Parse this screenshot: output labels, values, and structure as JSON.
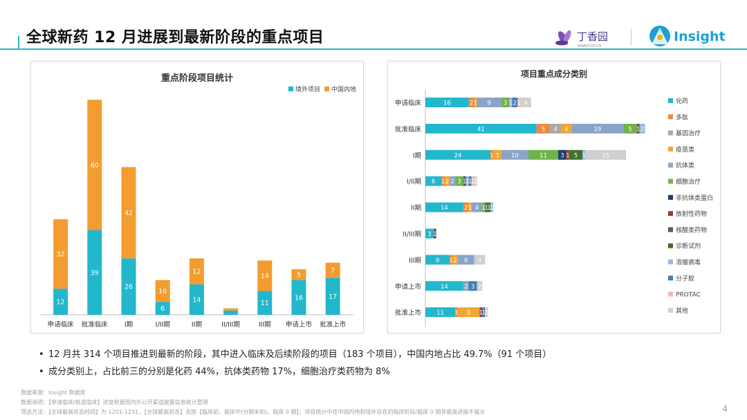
{
  "page": {
    "title": "全球新药 12 月进展到最新阶段的重点项目",
    "page_number": "4"
  },
  "logos": {
    "dxy_name": "丁香园",
    "dxy_url": "WWW.DXY.CN",
    "insight_name": "Insight"
  },
  "colors": {
    "overseas": "#23b7cc",
    "china": "#f39c2f",
    "title_line": "#2bb5c9",
    "composition": {
      "化药": "#23b7cc",
      "多肽": "#ec8a3c",
      "基因治疗": "#a8a8a8",
      "疫苗类": "#f3a531",
      "抗体类": "#8aa4c8",
      "细胞治疗": "#70b34c",
      "非抗体类蛋白": "#1f3c6c",
      "放射性药物": "#9a3f2d",
      "核酸类药物": "#5b5b5b",
      "诊断试剂": "#436f2b",
      "溶瘤病毒": "#9bb7de",
      "分子胶": "#3f7fb8",
      "PROTAC": "#f4b8b0",
      "其他": "#cfcfcf"
    }
  },
  "chart_data": [
    {
      "type": "bar",
      "stacked": true,
      "title": "重点阶段项目统计",
      "legend_position": "top-right",
      "grid": false,
      "categories": [
        "申请临床",
        "批准临床",
        "I期",
        "I/II期",
        "II期",
        "II/III期",
        "III期",
        "申请上市",
        "批准上市"
      ],
      "series": [
        {
          "name": "境外项目",
          "values": [
            12,
            39,
            26,
            6,
            14,
            2,
            11,
            16,
            17
          ]
        },
        {
          "name": "中国内地",
          "values": [
            32,
            60,
            42,
            10,
            12,
            1,
            14,
            5,
            7
          ]
        }
      ]
    },
    {
      "type": "bar",
      "orientation": "horizontal",
      "stacked": true,
      "title": "项目重点成分类别",
      "legend_position": "right",
      "grid": false,
      "categories": [
        "申请临床",
        "批准临床",
        "I期",
        "I/II期",
        "II期",
        "II/III期",
        "III期",
        "申请上市",
        "批准上市"
      ],
      "series": [
        {
          "name": "化药",
          "values": [
            16,
            41,
            24,
            6,
            14,
            3,
            9,
            14,
            11
          ]
        },
        {
          "name": "多肽",
          "values": [
            2,
            5,
            1,
            1,
            2,
            0,
            1,
            0,
            1
          ]
        },
        {
          "name": "基因治疗",
          "values": [
            0,
            4,
            0,
            0,
            0,
            0,
            0,
            0,
            0
          ]
        },
        {
          "name": "疫苗类",
          "values": [
            1,
            4,
            3,
            2,
            1,
            0,
            2,
            0,
            8
          ]
        },
        {
          "name": "抗体类",
          "values": [
            9,
            19,
            10,
            2,
            4,
            0,
            6,
            2,
            0
          ]
        },
        {
          "name": "细胞治疗",
          "values": [
            3,
            5,
            11,
            3,
            1,
            0,
            0,
            0,
            0
          ]
        },
        {
          "name": "非抗体类蛋白",
          "values": [
            0,
            0,
            3,
            0,
            0,
            0,
            0,
            0,
            0
          ]
        },
        {
          "name": "放射性药物",
          "values": [
            0,
            0,
            1,
            0,
            0,
            0,
            0,
            0,
            1
          ]
        },
        {
          "name": "核酸类药物",
          "values": [
            0,
            1,
            0,
            1,
            1,
            1,
            0,
            0,
            0
          ]
        },
        {
          "name": "诊断试剂",
          "values": [
            0,
            0,
            5,
            0,
            1,
            0,
            0,
            0,
            0
          ]
        },
        {
          "name": "溶瘤病毒",
          "values": [
            1,
            2,
            1,
            1,
            1,
            0,
            0,
            0,
            0
          ]
        },
        {
          "name": "分子胶",
          "values": [
            2,
            0,
            0,
            1,
            0,
            0,
            0,
            3,
            1
          ]
        },
        {
          "name": "PROTAC",
          "values": [
            1,
            0,
            0,
            1,
            0,
            0,
            0,
            0,
            1
          ]
        },
        {
          "name": "其他",
          "values": [
            4,
            0,
            15,
            1,
            0,
            0,
            4,
            2,
            0
          ]
        }
      ]
    }
  ],
  "bullets": [
    "12 月共 314 个项目推进到最新的阶段，其中进入临床及后续阶段的项目（183 个项目），中国内地占比 49.7%（91 个项目）",
    "成分类别上，占比前三的分别是化药 44%，抗体类药物 17%，细胞治疗类药物为 8%"
  ],
  "notes": [
    "数据来源：Insight 数据库",
    "数据说明：【申请临床/批准临床】进度根据国内外公开渠道披露信息统计整理",
    "筛选方法：【全球最高状态时间】为 1201-1231，【全球最高状态】去除【临床前、临床中(分期未知)、临床 0 期】；项目统计中在中国内地和境外存在的临床阶段/临床 0 期非最高进展不展示"
  ]
}
